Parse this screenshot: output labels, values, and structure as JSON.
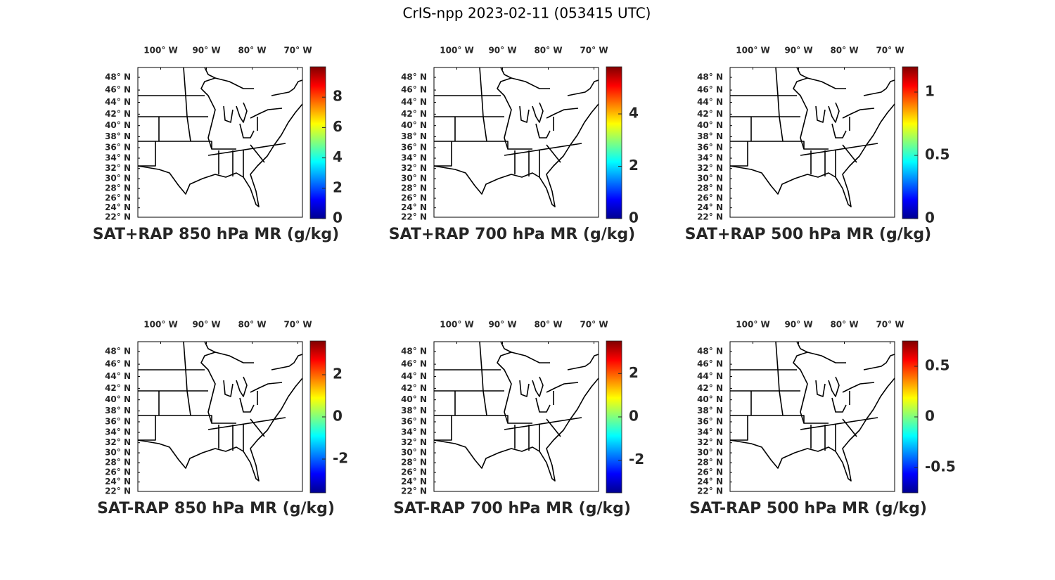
{
  "title": "CrIS-npp 2023-02-11 (053415 UTC)",
  "map": {
    "lonlim": [
      -105,
      -69
    ],
    "latlim": [
      22,
      49.5
    ],
    "lonticks": [
      {
        "value": -100,
        "label": "100° W"
      },
      {
        "value": -90,
        "label": "90° W"
      },
      {
        "value": -80,
        "label": "80° W"
      },
      {
        "value": -70,
        "label": "70° W"
      }
    ],
    "latticks": [
      {
        "value": 48,
        "label": "48° N"
      },
      {
        "value": 46,
        "label": "46° N"
      },
      {
        "value": 44,
        "label": "44° N"
      },
      {
        "value": 42,
        "label": "42° N"
      },
      {
        "value": 40,
        "label": "40° N"
      },
      {
        "value": 38,
        "label": "38° N"
      },
      {
        "value": 36,
        "label": "36° N"
      },
      {
        "value": 34,
        "label": "34° N"
      },
      {
        "value": 32,
        "label": "32° N"
      },
      {
        "value": 30,
        "label": "30° N"
      },
      {
        "value": 28,
        "label": "28° N"
      },
      {
        "value": 26,
        "label": "26° N"
      },
      {
        "value": 24,
        "label": "24° N"
      },
      {
        "value": 22,
        "label": "22° N"
      }
    ]
  },
  "panels": [
    {
      "title": "SAT+RAP 850 hPa MR (g/kg)",
      "clim": [
        0,
        10
      ],
      "cticks": [
        0,
        2,
        4,
        6,
        8
      ]
    },
    {
      "title": "SAT+RAP 700 hPa MR (g/kg)",
      "clim": [
        0,
        5.8
      ],
      "cticks": [
        0,
        2,
        4
      ]
    },
    {
      "title": "SAT+RAP 500 hPa MR (g/kg)",
      "clim": [
        0,
        1.2
      ],
      "cticks": [
        0,
        0.5,
        1
      ]
    },
    {
      "title": "SAT-RAP 850 hPa MR (g/kg)",
      "clim": [
        -3.6,
        3.6
      ],
      "cticks": [
        -2,
        0,
        2
      ]
    },
    {
      "title": "SAT-RAP 700 hPa MR (g/kg)",
      "clim": [
        -3.5,
        3.5
      ],
      "cticks": [
        -2,
        0,
        2
      ]
    },
    {
      "title": "SAT-RAP 500 hPa MR (g/kg)",
      "clim": [
        -0.75,
        0.75
      ],
      "cticks": [
        -0.5,
        0,
        0.5
      ]
    }
  ]
}
